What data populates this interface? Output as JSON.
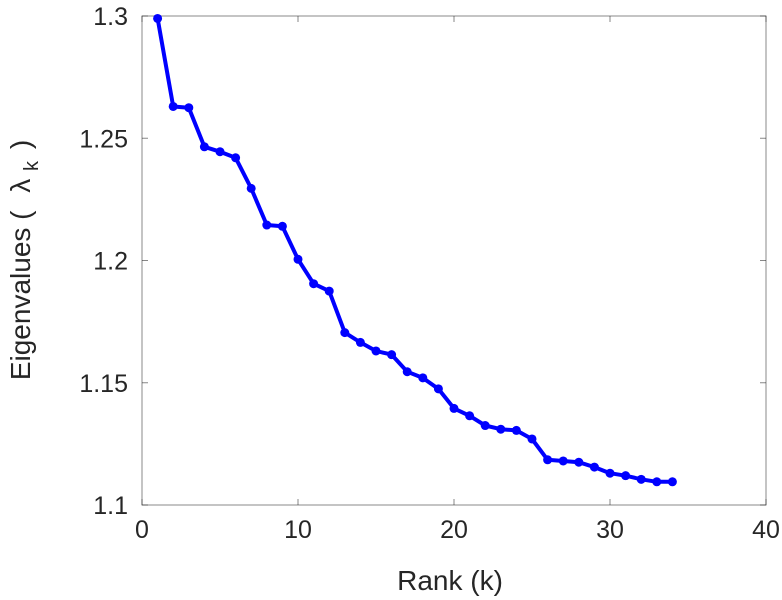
{
  "chart_data": {
    "type": "line",
    "title": "",
    "xlabel": "Rank (k)",
    "ylabel_prefix": "Eigenvalues (",
    "ylabel_symbol": "λ",
    "ylabel_subscript": "k",
    "ylabel_suffix": ")",
    "xlim": [
      0,
      40
    ],
    "ylim": [
      1.1,
      1.3
    ],
    "xticks": [
      0,
      10,
      20,
      30,
      40
    ],
    "xtick_labels": [
      "0",
      "10",
      "20",
      "30",
      "40"
    ],
    "yticks": [
      1.1,
      1.15,
      1.2,
      1.25,
      1.3
    ],
    "ytick_labels": [
      "1.1",
      "1.15",
      "1.2",
      "1.25",
      "1.3"
    ],
    "grid": false,
    "line_color": "#0000ff",
    "series": [
      {
        "x": [
          1,
          2,
          3,
          4,
          5,
          6,
          7,
          8,
          9,
          10,
          11,
          12,
          13,
          14,
          15,
          16,
          17,
          18,
          19,
          20,
          21,
          22,
          23,
          24,
          25,
          26,
          27,
          28,
          29,
          30,
          31,
          32,
          33,
          34
        ],
        "values": [
          1.299,
          1.263,
          1.2625,
          1.2465,
          1.2445,
          1.242,
          1.2295,
          1.2145,
          1.214,
          1.2005,
          1.1905,
          1.1875,
          1.1705,
          1.1665,
          1.163,
          1.1615,
          1.1545,
          1.152,
          1.1475,
          1.1395,
          1.1365,
          1.1325,
          1.131,
          1.1305,
          1.127,
          1.1185,
          1.118,
          1.1175,
          1.1155,
          1.113,
          1.112,
          1.1105,
          1.1095,
          1.1095
        ]
      }
    ]
  }
}
